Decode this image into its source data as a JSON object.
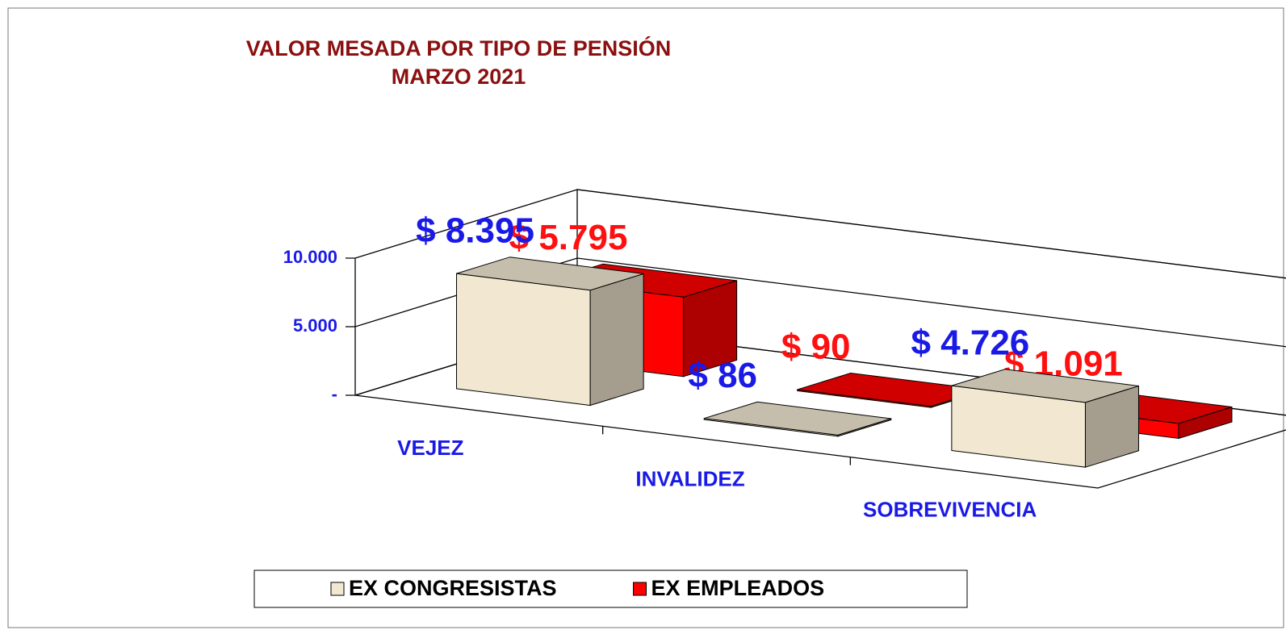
{
  "chart_data": {
    "type": "bar3d",
    "title": "VALOR MESADA POR TIPO DE PENSIÓN",
    "subtitle": "MARZO 2021",
    "categories": [
      "VEJEZ",
      "INVALIDEZ",
      "SOBREVIVENCIA"
    ],
    "series": [
      {
        "name": "EX CONGRESISTAS",
        "color": "#f2e8d2",
        "values": [
          8395,
          86,
          4726
        ],
        "value_labels": [
          "$ 8.395",
          "$ 86",
          "$ 4.726"
        ]
      },
      {
        "name": "EX EMPLEADOS",
        "color": "#ff0000",
        "values": [
          5795,
          90,
          1091
        ],
        "value_labels": [
          "$ 5.795",
          "$ 90",
          "$ 1.091"
        ]
      }
    ],
    "ylim": [
      0,
      10000
    ],
    "yticks": [
      {
        "value": 0,
        "label": "-"
      },
      {
        "value": 5000,
        "label": "5.000"
      },
      {
        "value": 10000,
        "label": "10.000"
      }
    ],
    "grid": true,
    "legend": "bottom"
  }
}
